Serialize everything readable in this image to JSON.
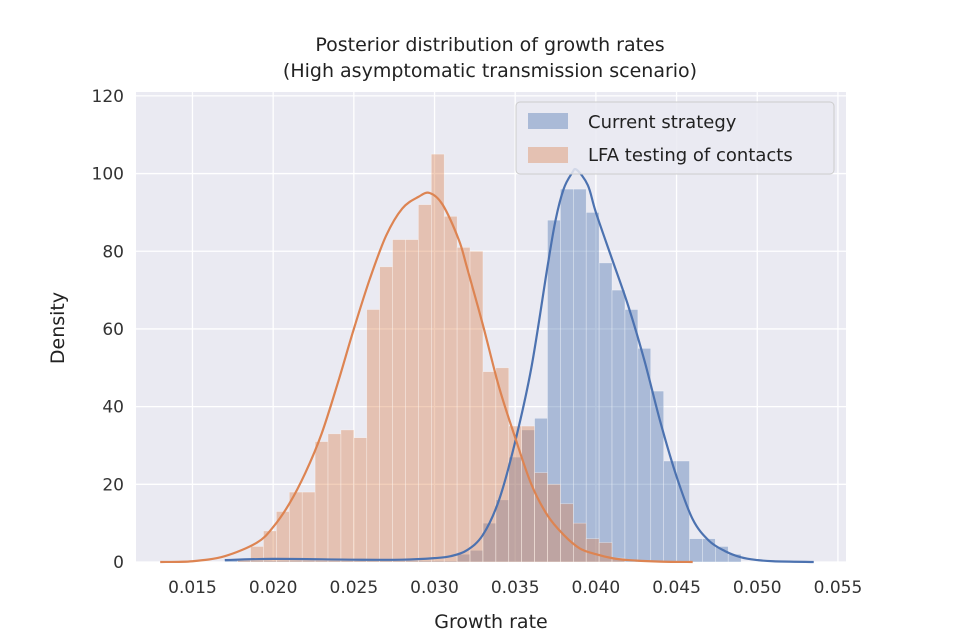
{
  "chart_data": {
    "type": "histogram",
    "title_lines": [
      "Posterior distribution of growth rates",
      "(High asymptomatic transmission scenario)"
    ],
    "xlabel": "Growth rate",
    "ylabel": "Density",
    "xlim": [
      0.0115,
      0.0555
    ],
    "ylim": [
      0,
      121
    ],
    "xticks": [
      0.015,
      0.02,
      0.025,
      0.03,
      0.035,
      0.04,
      0.045,
      0.05,
      0.055
    ],
    "xtick_labels": [
      "0.015",
      "0.020",
      "0.025",
      "0.030",
      "0.035",
      "0.040",
      "0.045",
      "0.050",
      "0.055"
    ],
    "yticks": [
      0,
      20,
      40,
      60,
      80,
      100,
      120
    ],
    "ytick_labels": [
      "0",
      "20",
      "40",
      "60",
      "80",
      "100",
      "120"
    ],
    "grid": true,
    "background": "#eaeaf2",
    "legend_position": "top-right",
    "series": [
      {
        "name": "Current strategy",
        "color": "#4c72b0",
        "bar_opacity": 0.4,
        "bins": [
          [
            0.017,
            0.0178,
            0.5
          ],
          [
            0.0178,
            0.0186,
            0.3
          ],
          [
            0.0186,
            0.0194,
            0.3
          ],
          [
            0.0194,
            0.0202,
            0.3
          ],
          [
            0.0202,
            0.021,
            0.3
          ],
          [
            0.021,
            0.0218,
            0.3
          ],
          [
            0.0218,
            0.0226,
            0.3
          ],
          [
            0.0226,
            0.0234,
            0.3
          ],
          [
            0.0234,
            0.0242,
            0.3
          ],
          [
            0.0242,
            0.025,
            0.3
          ],
          [
            0.025,
            0.0258,
            0.3
          ],
          [
            0.0258,
            0.0266,
            0.3
          ],
          [
            0.0266,
            0.0274,
            0.3
          ],
          [
            0.0274,
            0.0282,
            0.3
          ],
          [
            0.0282,
            0.029,
            0.3
          ],
          [
            0.029,
            0.0298,
            0.3
          ],
          [
            0.0298,
            0.0306,
            0.3
          ],
          [
            0.0306,
            0.0314,
            0.3
          ],
          [
            0.0314,
            0.0322,
            2.0
          ],
          [
            0.0322,
            0.033,
            3.0
          ],
          [
            0.033,
            0.0338,
            10.0
          ],
          [
            0.0338,
            0.0346,
            16.0
          ],
          [
            0.0346,
            0.0354,
            27.0
          ],
          [
            0.0354,
            0.0362,
            34.0
          ],
          [
            0.0362,
            0.037,
            37.0
          ],
          [
            0.037,
            0.0378,
            88.0
          ],
          [
            0.0378,
            0.0386,
            96.0
          ],
          [
            0.0386,
            0.0394,
            96.0
          ],
          [
            0.0394,
            0.0402,
            90.0
          ],
          [
            0.0402,
            0.041,
            77.0
          ],
          [
            0.041,
            0.0418,
            70.0
          ],
          [
            0.0418,
            0.0426,
            65.0
          ],
          [
            0.0426,
            0.0434,
            55.0
          ],
          [
            0.0434,
            0.0442,
            44.0
          ],
          [
            0.0442,
            0.045,
            26.0
          ],
          [
            0.045,
            0.0458,
            26.0
          ],
          [
            0.0458,
            0.0466,
            6.0
          ],
          [
            0.0466,
            0.0474,
            6.0
          ],
          [
            0.0474,
            0.0482,
            4.0
          ],
          [
            0.0482,
            0.049,
            2.0
          ]
        ],
        "kde_x": [
          0.017,
          0.02,
          0.025,
          0.028,
          0.03,
          0.031,
          0.032,
          0.033,
          0.034,
          0.035,
          0.036,
          0.037,
          0.0375,
          0.038,
          0.0385,
          0.0388,
          0.0395,
          0.04,
          0.041,
          0.042,
          0.043,
          0.044,
          0.045,
          0.046,
          0.047,
          0.048,
          0.049,
          0.05,
          0.051,
          0.0535
        ],
        "kde_y": [
          0.5,
          0.8,
          0.6,
          0.6,
          1.0,
          1.5,
          3.0,
          7.0,
          16.0,
          31.0,
          50.0,
          76.0,
          88.0,
          96.0,
          100.0,
          101.0,
          97.0,
          90.0,
          78.0,
          66.0,
          52.0,
          36.0,
          22.0,
          11.0,
          5.5,
          2.8,
          1.2,
          0.5,
          0.2,
          0.0
        ]
      },
      {
        "name": "LFA testing of contacts",
        "color": "#dd8452",
        "bar_opacity": 0.4,
        "bins": [
          [
            0.0178,
            0.0186,
            0.8
          ],
          [
            0.0186,
            0.0194,
            4.0
          ],
          [
            0.0194,
            0.0202,
            8.0
          ],
          [
            0.0202,
            0.021,
            13.0
          ],
          [
            0.021,
            0.0218,
            18.0
          ],
          [
            0.0218,
            0.0226,
            18.0
          ],
          [
            0.0226,
            0.0234,
            31.0
          ],
          [
            0.0234,
            0.0242,
            33.0
          ],
          [
            0.0242,
            0.025,
            34.0
          ],
          [
            0.025,
            0.0258,
            32.0
          ],
          [
            0.0258,
            0.0266,
            65.0
          ],
          [
            0.0266,
            0.0274,
            76.0
          ],
          [
            0.0274,
            0.0282,
            83.0
          ],
          [
            0.0282,
            0.029,
            83.0
          ],
          [
            0.029,
            0.0298,
            92.0
          ],
          [
            0.0298,
            0.0306,
            105.0
          ],
          [
            0.0306,
            0.0314,
            89.0
          ],
          [
            0.0314,
            0.0322,
            81.0
          ],
          [
            0.0322,
            0.033,
            80.0
          ],
          [
            0.033,
            0.0338,
            49.0
          ],
          [
            0.0338,
            0.0346,
            50.0
          ],
          [
            0.0346,
            0.0354,
            35.0
          ],
          [
            0.0354,
            0.0362,
            35.0
          ],
          [
            0.0362,
            0.037,
            23.0
          ],
          [
            0.037,
            0.0378,
            20.0
          ],
          [
            0.0378,
            0.0386,
            15.0
          ],
          [
            0.0386,
            0.0394,
            10.0
          ],
          [
            0.0394,
            0.0402,
            6.0
          ],
          [
            0.0402,
            0.041,
            5.0
          ],
          [
            0.041,
            0.0418,
            1.0
          ]
        ],
        "kde_x": [
          0.013,
          0.015,
          0.017,
          0.019,
          0.02,
          0.021,
          0.022,
          0.023,
          0.024,
          0.025,
          0.026,
          0.027,
          0.028,
          0.029,
          0.0297,
          0.0305,
          0.0315,
          0.032,
          0.033,
          0.034,
          0.035,
          0.036,
          0.037,
          0.038,
          0.039,
          0.04,
          0.041,
          0.042,
          0.044,
          0.046
        ],
        "kde_y": [
          0.0,
          0.2,
          1.5,
          5.0,
          9.0,
          15.0,
          23.0,
          33.0,
          46.0,
          60.0,
          73.0,
          84.0,
          91.0,
          94.0,
          95.0,
          92.0,
          83.0,
          76.0,
          61.0,
          45.0,
          32.0,
          20.0,
          12.0,
          7.0,
          3.5,
          2.0,
          1.0,
          0.5,
          0.1,
          0.0
        ]
      }
    ]
  }
}
